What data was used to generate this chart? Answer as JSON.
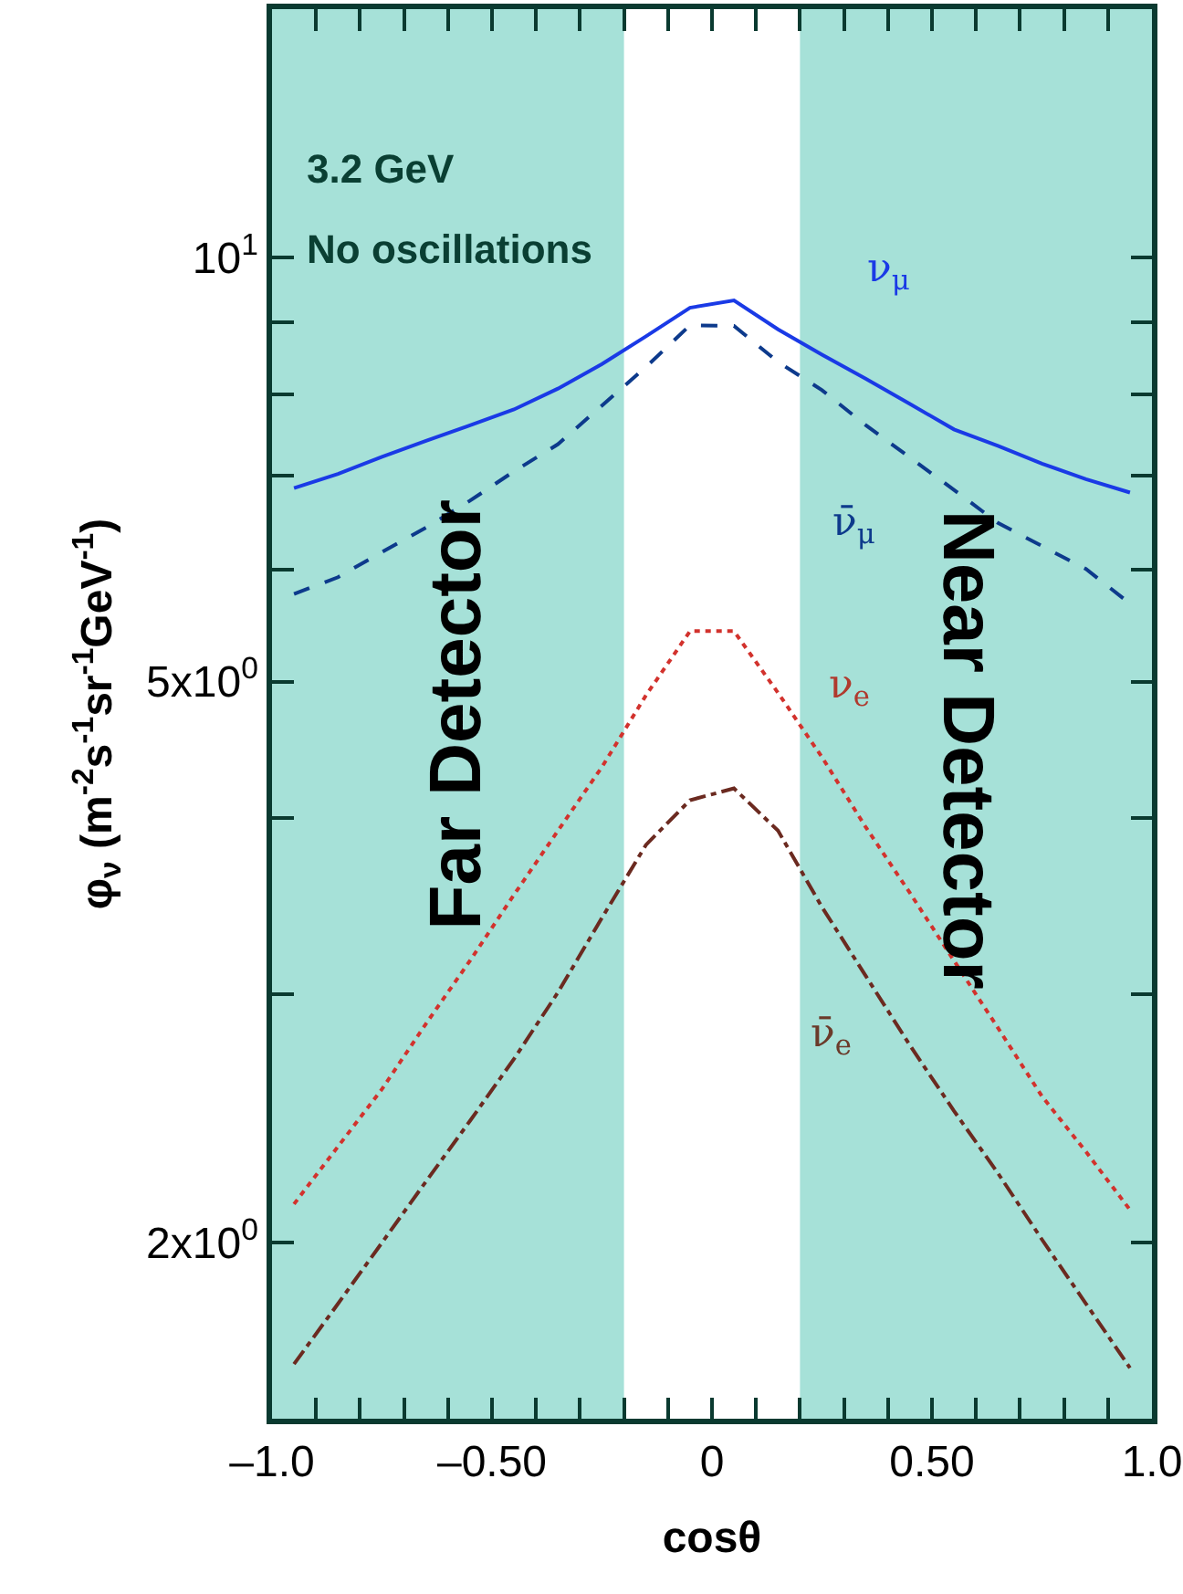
{
  "chart_data": {
    "type": "line",
    "xlabel": "cosθ",
    "ylabel": "φ$_{ν}$ (m$^{-2}$s$^{-1}$sr$^{-1}$GeV$^{-1}$)",
    "x": [
      -0.95,
      -0.85,
      -0.75,
      -0.65,
      -0.55,
      -0.45,
      -0.35,
      -0.25,
      -0.15,
      -0.05,
      0.05,
      0.15,
      0.25,
      0.35,
      0.45,
      0.55,
      0.65,
      0.75,
      0.85,
      0.95
    ],
    "series": [
      {
        "name": "ν$_{μ}$",
        "color": "#1a3ae6",
        "line_style": "solid",
        "values": [
          6.86,
          7.02,
          7.22,
          7.41,
          7.6,
          7.8,
          8.07,
          8.4,
          8.79,
          9.21,
          9.32,
          8.89,
          8.53,
          8.2,
          7.87,
          7.55,
          7.35,
          7.14,
          6.96,
          6.81
        ]
      },
      {
        "name": "ν̄$_{μ}$",
        "color": "#0d3a8c",
        "line_style": "dashed",
        "values": [
          5.77,
          5.93,
          6.18,
          6.43,
          6.72,
          7.05,
          7.37,
          7.85,
          8.36,
          8.95,
          8.94,
          8.43,
          8.05,
          7.6,
          7.21,
          6.84,
          6.48,
          6.24,
          6.01,
          5.68
        ]
      },
      {
        "name": "ν$_{e}$",
        "color": "#d2322d",
        "line_style": "dotted",
        "values": [
          2.13,
          2.34,
          2.57,
          2.86,
          3.17,
          3.53,
          3.92,
          4.35,
          4.89,
          5.43,
          5.43,
          4.91,
          4.42,
          3.94,
          3.54,
          3.17,
          2.84,
          2.54,
          2.32,
          2.11
        ]
      },
      {
        "name": "ν̄$_{e}$",
        "color": "#6b2a20",
        "line_style": "dashdot",
        "values": [
          1.64,
          1.81,
          2.0,
          2.21,
          2.44,
          2.7,
          3.01,
          3.4,
          3.83,
          4.12,
          4.2,
          3.92,
          3.46,
          3.09,
          2.76,
          2.48,
          2.24,
          2.01,
          1.81,
          1.63
        ]
      }
    ],
    "log": "y",
    "xlim": [
      -1,
      1
    ],
    "ylim": [
      1.5,
      15
    ],
    "xticks": [
      {
        "value": -1,
        "label": "–1.0"
      },
      {
        "value": -0.9,
        "label": null
      },
      {
        "value": -0.8,
        "label": null
      },
      {
        "value": -0.7,
        "label": null
      },
      {
        "value": -0.6,
        "label": null
      },
      {
        "value": -0.5,
        "label": "–0.50"
      },
      {
        "value": -0.4,
        "label": null
      },
      {
        "value": -0.3,
        "label": null
      },
      {
        "value": -0.2,
        "label": null
      },
      {
        "value": -0.1,
        "label": null
      },
      0,
      {
        "value": 0.1,
        "label": null
      },
      {
        "value": 0.2,
        "label": null
      },
      {
        "value": 0.3,
        "label": null
      },
      {
        "value": 0.4,
        "label": null
      },
      {
        "value": 0.5,
        "label": "0.50"
      },
      {
        "value": 0.6,
        "label": null
      },
      {
        "value": 0.7,
        "label": null
      },
      {
        "value": 0.8,
        "label": null
      },
      {
        "value": 0.9,
        "label": null
      },
      {
        "value": 1,
        "label": "1.0"
      }
    ],
    "yticks": [
      {
        "value": 2,
        "label": "2x10$^{0}$"
      },
      {
        "value": 3,
        "label": null
      },
      {
        "value": 4,
        "label": null
      },
      {
        "value": 5,
        "label": "5x10$^{0}$"
      },
      {
        "value": 6,
        "label": null
      },
      {
        "value": 7,
        "label": null
      },
      {
        "value": 8,
        "label": null
      },
      {
        "value": 9,
        "label": null
      },
      {
        "value": 10,
        "label": "10$^{1}$"
      }
    ],
    "bands": [
      {
        "axis": "x",
        "from": -1,
        "to": -0.2,
        "label": "Far Detector",
        "color": "#a6e1d8"
      },
      {
        "axis": "x",
        "from": 0.2,
        "to": 1,
        "label": "Near Detector",
        "color": "#a6e1d8"
      }
    ],
    "annotations": [
      "3.2 GeV",
      "No oscillations"
    ],
    "grid": false,
    "legend": false,
    "marker": "none"
  }
}
